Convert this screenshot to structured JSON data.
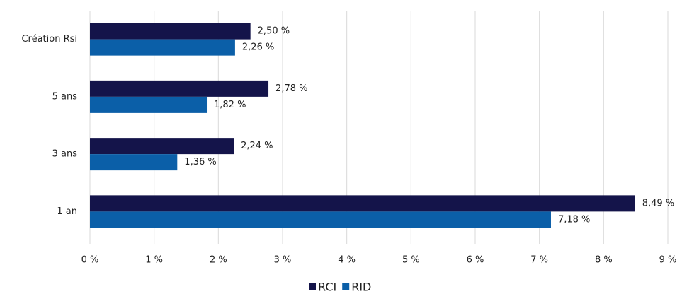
{
  "chart_data": {
    "type": "bar",
    "orientation": "horizontal",
    "categories": [
      "Création Rsi",
      "5 ans",
      "3 ans",
      "1 an"
    ],
    "series": [
      {
        "name": "RCI",
        "color": "#14144a",
        "values": [
          2.5,
          2.78,
          2.24,
          8.49
        ],
        "value_labels": [
          "2,50 %",
          "2,78 %",
          "2,24 %",
          "8,49 %"
        ]
      },
      {
        "name": "RID",
        "color": "#0b5fa8",
        "values": [
          2.26,
          1.82,
          1.36,
          7.18
        ],
        "value_labels": [
          "2,26 %",
          "1,82 %",
          "1,36 %",
          "7,18 %"
        ]
      }
    ],
    "xlim": [
      0,
      9
    ],
    "xticks": [
      {
        "value": 0,
        "label": "0 %"
      },
      {
        "value": 1,
        "label": "1 %"
      },
      {
        "value": 2,
        "label": "2 %"
      },
      {
        "value": 3,
        "label": "3 %"
      },
      {
        "value": 4,
        "label": "4 %"
      },
      {
        "value": 5,
        "label": "5 %"
      },
      {
        "value": 6,
        "label": "6 %"
      },
      {
        "value": 7,
        "label": "7 %"
      },
      {
        "value": 8,
        "label": "8 %"
      },
      {
        "value": 9,
        "label": "9 %"
      }
    ],
    "grid": true,
    "legend": "bottom"
  }
}
